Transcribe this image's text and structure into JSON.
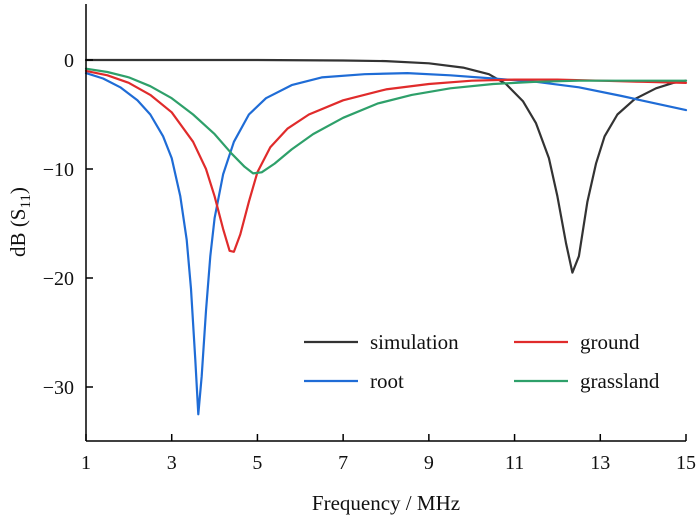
{
  "chart_data": {
    "type": "line",
    "title": "",
    "xlabel": "Frequency / MHz",
    "ylabel_main": "dB (S",
    "ylabel_sub": "11",
    "ylabel_close": ")",
    "xlim": [
      1,
      15
    ],
    "ylim": [
      -35,
      5
    ],
    "xticks": [
      1,
      3,
      5,
      7,
      9,
      11,
      13,
      15
    ],
    "xtick_labels": [
      "1",
      "3",
      "5",
      "7",
      "9",
      "11",
      "13",
      "15"
    ],
    "yticks": [
      0,
      -10,
      -20,
      -30
    ],
    "ytick_labels": [
      "0",
      "−10",
      "−20",
      "−30"
    ],
    "grid": false,
    "legend_position": "bottom-right",
    "series": [
      {
        "name": "simulation",
        "color": "#333333",
        "points": [
          [
            1.0,
            0.0
          ],
          [
            3.0,
            0.0
          ],
          [
            5.0,
            0.0
          ],
          [
            7.0,
            -0.05
          ],
          [
            8.0,
            -0.1
          ],
          [
            9.0,
            -0.3
          ],
          [
            9.8,
            -0.7
          ],
          [
            10.4,
            -1.3
          ],
          [
            10.8,
            -2.2
          ],
          [
            11.2,
            -3.8
          ],
          [
            11.5,
            -5.8
          ],
          [
            11.8,
            -9.0
          ],
          [
            12.0,
            -12.5
          ],
          [
            12.2,
            -16.8
          ],
          [
            12.35,
            -19.5
          ],
          [
            12.5,
            -18.0
          ],
          [
            12.7,
            -13.0
          ],
          [
            12.9,
            -9.5
          ],
          [
            13.1,
            -7.0
          ],
          [
            13.4,
            -5.0
          ],
          [
            13.8,
            -3.6
          ],
          [
            14.3,
            -2.6
          ],
          [
            14.7,
            -2.1
          ],
          [
            15.0,
            -1.9
          ]
        ]
      },
      {
        "name": "root",
        "color": "#1f6cd6",
        "points": [
          [
            1.0,
            -1.2
          ],
          [
            1.4,
            -1.7
          ],
          [
            1.8,
            -2.5
          ],
          [
            2.2,
            -3.7
          ],
          [
            2.5,
            -5.0
          ],
          [
            2.8,
            -7.0
          ],
          [
            3.0,
            -9.0
          ],
          [
            3.2,
            -12.5
          ],
          [
            3.35,
            -16.5
          ],
          [
            3.45,
            -21.0
          ],
          [
            3.55,
            -27.5
          ],
          [
            3.62,
            -32.5
          ],
          [
            3.7,
            -29.0
          ],
          [
            3.8,
            -23.0
          ],
          [
            3.9,
            -18.0
          ],
          [
            4.0,
            -14.5
          ],
          [
            4.2,
            -10.5
          ],
          [
            4.45,
            -7.5
          ],
          [
            4.8,
            -5.0
          ],
          [
            5.2,
            -3.5
          ],
          [
            5.8,
            -2.3
          ],
          [
            6.5,
            -1.6
          ],
          [
            7.5,
            -1.3
          ],
          [
            8.5,
            -1.2
          ],
          [
            9.5,
            -1.4
          ],
          [
            10.5,
            -1.7
          ],
          [
            11.5,
            -2.0
          ],
          [
            12.5,
            -2.5
          ],
          [
            13.5,
            -3.3
          ],
          [
            14.3,
            -4.0
          ],
          [
            15.0,
            -4.6
          ]
        ]
      },
      {
        "name": "ground",
        "color": "#e02b2b",
        "points": [
          [
            1.0,
            -1.0
          ],
          [
            1.5,
            -1.4
          ],
          [
            2.0,
            -2.1
          ],
          [
            2.5,
            -3.2
          ],
          [
            3.0,
            -4.8
          ],
          [
            3.5,
            -7.5
          ],
          [
            3.8,
            -10.0
          ],
          [
            4.0,
            -12.5
          ],
          [
            4.2,
            -15.5
          ],
          [
            4.35,
            -17.5
          ],
          [
            4.45,
            -17.6
          ],
          [
            4.6,
            -16.0
          ],
          [
            4.8,
            -13.0
          ],
          [
            5.0,
            -10.3
          ],
          [
            5.3,
            -8.0
          ],
          [
            5.7,
            -6.3
          ],
          [
            6.2,
            -5.0
          ],
          [
            7.0,
            -3.7
          ],
          [
            8.0,
            -2.7
          ],
          [
            9.0,
            -2.2
          ],
          [
            10.0,
            -1.9
          ],
          [
            11.0,
            -1.8
          ],
          [
            12.0,
            -1.8
          ],
          [
            13.0,
            -1.9
          ],
          [
            14.0,
            -2.0
          ],
          [
            15.0,
            -2.1
          ]
        ]
      },
      {
        "name": "grassland",
        "color": "#2ea06a",
        "points": [
          [
            1.0,
            -0.8
          ],
          [
            1.5,
            -1.1
          ],
          [
            2.0,
            -1.6
          ],
          [
            2.5,
            -2.4
          ],
          [
            3.0,
            -3.5
          ],
          [
            3.5,
            -5.0
          ],
          [
            4.0,
            -6.8
          ],
          [
            4.4,
            -8.6
          ],
          [
            4.7,
            -9.8
          ],
          [
            4.9,
            -10.4
          ],
          [
            5.1,
            -10.3
          ],
          [
            5.4,
            -9.5
          ],
          [
            5.8,
            -8.2
          ],
          [
            6.3,
            -6.8
          ],
          [
            7.0,
            -5.3
          ],
          [
            7.8,
            -4.0
          ],
          [
            8.6,
            -3.2
          ],
          [
            9.5,
            -2.6
          ],
          [
            10.5,
            -2.2
          ],
          [
            11.5,
            -2.0
          ],
          [
            12.5,
            -1.9
          ],
          [
            13.5,
            -1.9
          ],
          [
            14.3,
            -1.9
          ],
          [
            15.0,
            -1.9
          ]
        ]
      }
    ],
    "legend_order": [
      0,
      1,
      2,
      3
    ]
  }
}
